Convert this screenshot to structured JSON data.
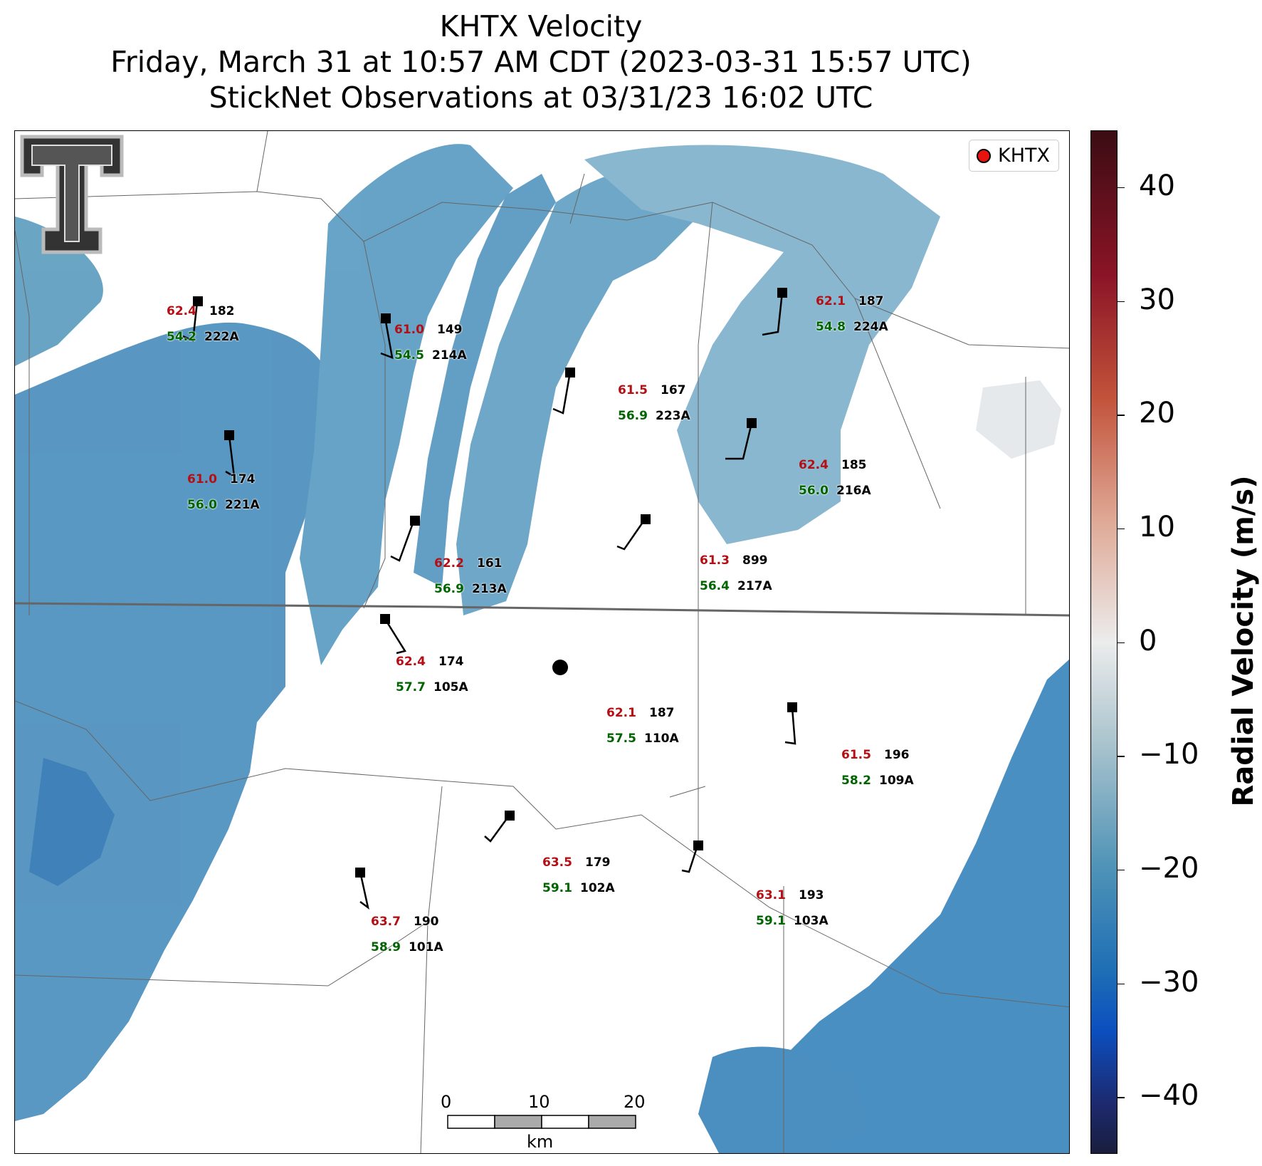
{
  "title": {
    "line1": "KHTX Velocity",
    "line2": "Friday, March 31 at 10:57 AM CDT (2023-03-31 15:57 UTC)",
    "line3": "StickNet Observations at 03/31/23 16:02 UTC"
  },
  "legend": {
    "label": "KHTX",
    "marker_color": "#e8130f"
  },
  "logo": {
    "name": "texas-tech-logo"
  },
  "scalebar": {
    "ticks": [
      "0",
      "10",
      "20"
    ],
    "unit": "km"
  },
  "colorbar": {
    "label": "Radial Velocity (m/s)",
    "ticks": [
      "40",
      "30",
      "20",
      "10",
      "0",
      "−10",
      "−20",
      "−30",
      "−40"
    ],
    "range": [
      -45,
      45
    ],
    "colors": [
      "#3b0c13",
      "#8a1426",
      "#c2523a",
      "#dfa895",
      "#ececec",
      "#a9c3cd",
      "#4f93b7",
      "#1f6fb5",
      "#0b4fbf",
      "#1a1d3d"
    ]
  },
  "stations": [
    {
      "id": "222A",
      "temp": "62.4",
      "dew": "54.2",
      "pres": "182"
    },
    {
      "id": "214A",
      "temp": "61.0",
      "dew": "54.5",
      "pres": "149"
    },
    {
      "id": "224A",
      "temp": "62.1",
      "dew": "54.8",
      "pres": "187"
    },
    {
      "id": "223A",
      "temp": "61.5",
      "dew": "56.9",
      "pres": "167"
    },
    {
      "id": "221A",
      "temp": "61.0",
      "dew": "56.0",
      "pres": "174"
    },
    {
      "id": "216A",
      "temp": "62.4",
      "dew": "56.0",
      "pres": "185"
    },
    {
      "id": "213A",
      "temp": "62.2",
      "dew": "56.9",
      "pres": "161"
    },
    {
      "id": "217A",
      "temp": "61.3",
      "dew": "56.4",
      "pres": "899"
    },
    {
      "id": "105A",
      "temp": "62.4",
      "dew": "57.7",
      "pres": "174"
    },
    {
      "id": "110A",
      "temp": "62.1",
      "dew": "57.5",
      "pres": "187"
    },
    {
      "id": "109A",
      "temp": "61.5",
      "dew": "58.2",
      "pres": "196"
    },
    {
      "id": "102A",
      "temp": "63.5",
      "dew": "59.1",
      "pres": "179"
    },
    {
      "id": "103A",
      "temp": "63.1",
      "dew": "59.1",
      "pres": "193"
    },
    {
      "id": "101A",
      "temp": "63.7",
      "dew": "58.9",
      "pres": "190"
    }
  ]
}
